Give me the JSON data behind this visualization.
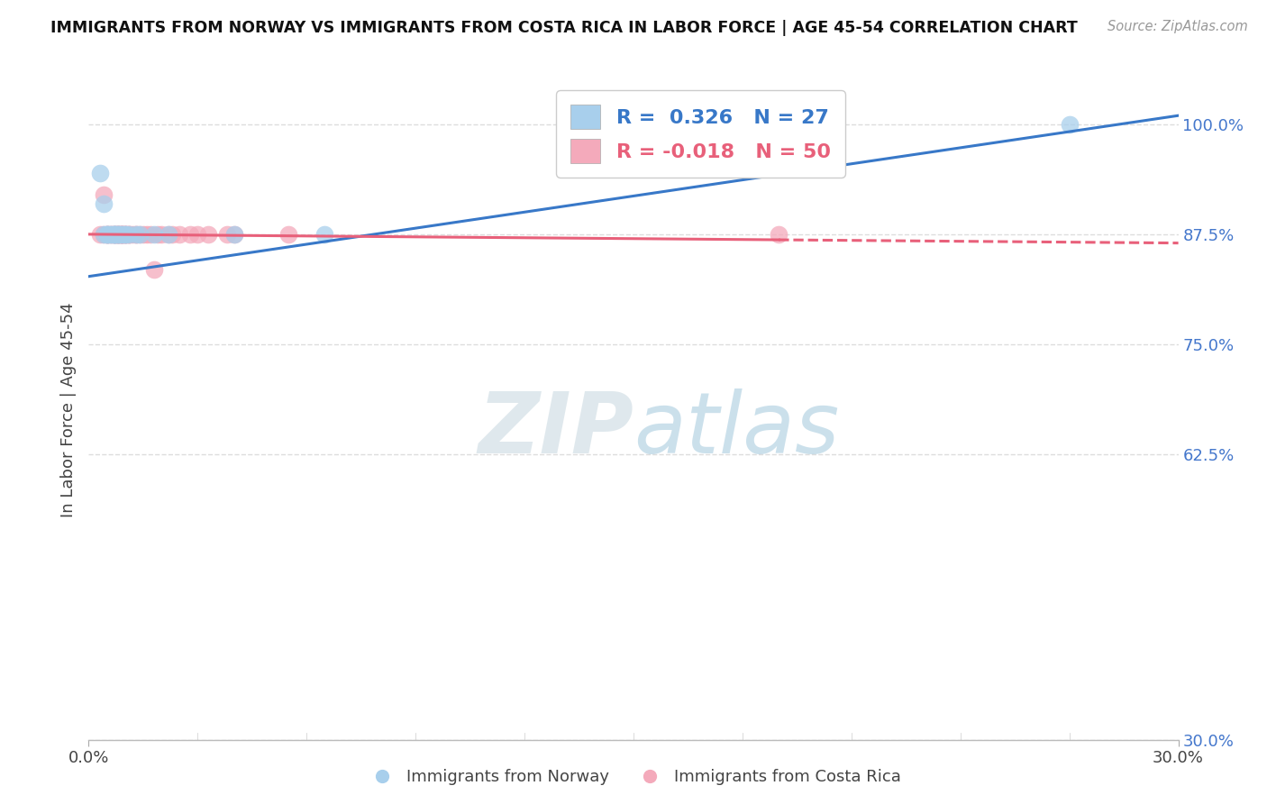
{
  "title": "IMMIGRANTS FROM NORWAY VS IMMIGRANTS FROM COSTA RICA IN LABOR FORCE | AGE 45-54 CORRELATION CHART",
  "source": "Source: ZipAtlas.com",
  "ylabel": "In Labor Force | Age 45-54",
  "x_min": 0.0,
  "x_max": 0.3,
  "y_min": 0.3,
  "y_max": 1.05,
  "y_ticks": [
    0.3,
    0.625,
    0.75,
    0.875,
    1.0
  ],
  "y_tick_labels": [
    "30.0%",
    "62.5%",
    "75.0%",
    "87.5%",
    "100.0%"
  ],
  "x_ticks": [
    0.0,
    0.3
  ],
  "x_tick_labels": [
    "0.0%",
    "30.0%"
  ],
  "norway_color": "#A8CFEC",
  "costa_rica_color": "#F4AABB",
  "norway_R": 0.326,
  "norway_N": 27,
  "costa_rica_R": -0.018,
  "costa_rica_N": 50,
  "norway_line_color": "#3878C8",
  "costa_rica_line_color": "#E8607A",
  "watermark_zip": "ZIP",
  "watermark_atlas": "atlas",
  "norway_x": [
    0.003,
    0.004,
    0.004,
    0.005,
    0.005,
    0.005,
    0.006,
    0.006,
    0.007,
    0.007,
    0.007,
    0.007,
    0.008,
    0.008,
    0.008,
    0.009,
    0.009,
    0.01,
    0.01,
    0.011,
    0.013,
    0.014,
    0.018,
    0.022,
    0.04,
    0.065,
    0.27
  ],
  "norway_y": [
    0.945,
    0.91,
    0.875,
    0.875,
    0.875,
    0.875,
    0.875,
    0.875,
    0.875,
    0.875,
    0.875,
    0.875,
    0.875,
    0.875,
    0.875,
    0.875,
    0.875,
    0.875,
    0.875,
    0.875,
    0.875,
    0.875,
    0.875,
    0.875,
    0.875,
    0.875,
    1.0
  ],
  "costa_rica_x": [
    0.003,
    0.004,
    0.004,
    0.005,
    0.005,
    0.005,
    0.006,
    0.006,
    0.007,
    0.007,
    0.007,
    0.007,
    0.008,
    0.008,
    0.008,
    0.008,
    0.008,
    0.009,
    0.009,
    0.009,
    0.009,
    0.009,
    0.009,
    0.01,
    0.01,
    0.01,
    0.01,
    0.011,
    0.011,
    0.011,
    0.012,
    0.013,
    0.013,
    0.014,
    0.015,
    0.016,
    0.017,
    0.018,
    0.019,
    0.02,
    0.022,
    0.023,
    0.025,
    0.028,
    0.03,
    0.033,
    0.038,
    0.04,
    0.055,
    0.19
  ],
  "costa_rica_y": [
    0.875,
    0.92,
    0.875,
    0.875,
    0.875,
    0.875,
    0.875,
    0.875,
    0.875,
    0.875,
    0.875,
    0.875,
    0.875,
    0.875,
    0.875,
    0.875,
    0.875,
    0.875,
    0.875,
    0.875,
    0.875,
    0.875,
    0.875,
    0.875,
    0.875,
    0.875,
    0.875,
    0.875,
    0.875,
    0.875,
    0.875,
    0.875,
    0.875,
    0.875,
    0.875,
    0.875,
    0.875,
    0.835,
    0.875,
    0.875,
    0.875,
    0.875,
    0.875,
    0.875,
    0.875,
    0.875,
    0.875,
    0.875,
    0.875,
    0.875
  ],
  "norway_line_x": [
    0.0,
    0.3
  ],
  "norway_line_y": [
    0.827,
    1.01
  ],
  "costa_rica_line_x": [
    0.0,
    0.3
  ],
  "costa_rica_line_y": [
    0.875,
    0.865
  ],
  "background_color": "#FFFFFF",
  "grid_color": "#DDDDDD"
}
